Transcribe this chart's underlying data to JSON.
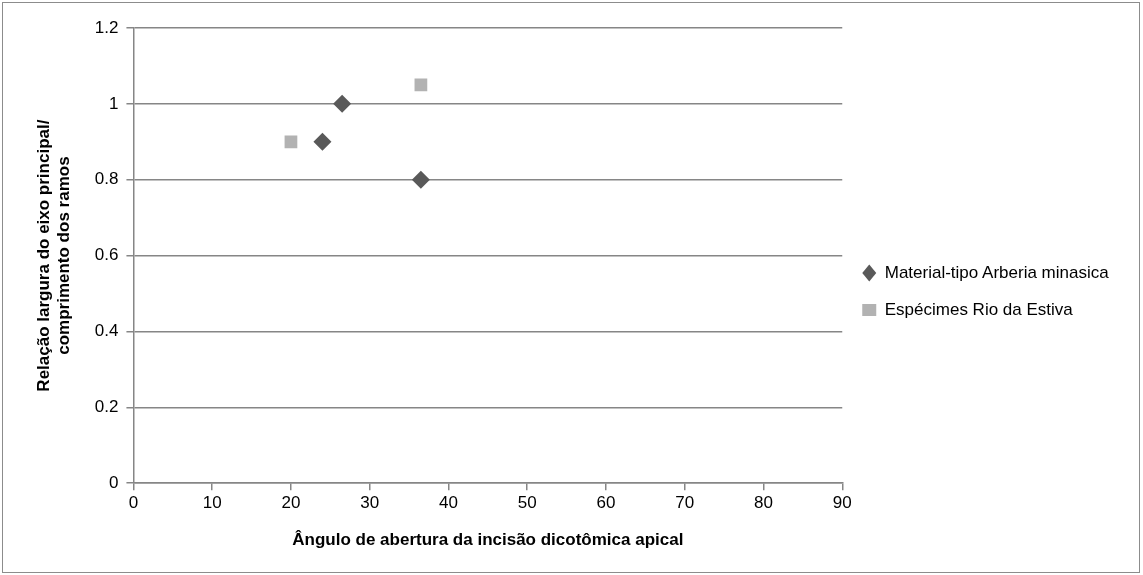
{
  "chart_data": {
    "type": "scatter",
    "xlabel": "Ângulo de abertura da incisão dicotômica apical",
    "ylabel": "Relação largura do eixo principal/ comprimento dos ramos",
    "xlim": [
      0,
      90
    ],
    "xticks": [
      0,
      10,
      20,
      30,
      40,
      50,
      60,
      70,
      80,
      90
    ],
    "ylim": [
      0,
      1.2
    ],
    "yticks": [
      0,
      0.2,
      0.4,
      0.6,
      0.8,
      1,
      1.2
    ],
    "grid": "y",
    "legend": "right",
    "series": [
      {
        "name": "Material-tipo Arberia minasica",
        "color": "#595959",
        "marker": "diamond",
        "x": [
          24,
          26.5,
          36.5
        ],
        "values": [
          0.9,
          1,
          0.8
        ]
      },
      {
        "name": "Espécimes Rio da Estiva",
        "color": "#b2b2b2",
        "marker": "square",
        "x": [
          20,
          36.5
        ],
        "values": [
          0.9,
          1.05
        ]
      }
    ]
  }
}
